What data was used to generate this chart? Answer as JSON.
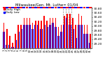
{
  "title": "Milwaukee/Gen. Mt. Luthe= 01/04",
  "background_color": "#ffffff",
  "bar_high_color": "#ff0000",
  "bar_low_color": "#0000ff",
  "dashed_line_color": "#888888",
  "ylim": [
    29.0,
    30.85
  ],
  "yticks": [
    29.2,
    29.4,
    29.6,
    29.8,
    30.0,
    30.2,
    30.4,
    30.6,
    30.8
  ],
  "categories": [
    "1",
    "2",
    "3",
    "4",
    "5",
    "6",
    "7",
    "8",
    "9",
    "10",
    "11",
    "12",
    "13",
    "14",
    "15",
    "16",
    "17",
    "18",
    "19",
    "20",
    "21",
    "22",
    "23",
    "24",
    "25",
    "26",
    "27",
    "28",
    "29",
    "30",
    "31"
  ],
  "high_values": [
    30.15,
    29.85,
    29.55,
    29.25,
    29.65,
    30.05,
    30.05,
    30.35,
    30.35,
    30.35,
    30.15,
    30.25,
    30.25,
    30.25,
    30.45,
    30.25,
    30.35,
    30.35,
    30.35,
    29.95,
    30.05,
    30.45,
    30.55,
    30.55,
    30.35,
    30.05,
    30.55,
    30.45,
    30.05,
    30.05,
    29.65
  ],
  "low_values": [
    29.75,
    29.15,
    29.15,
    29.05,
    29.35,
    29.75,
    29.85,
    30.05,
    30.05,
    30.05,
    29.85,
    30.05,
    30.05,
    29.85,
    30.05,
    29.95,
    30.05,
    30.15,
    29.95,
    29.55,
    29.75,
    30.05,
    30.35,
    30.05,
    29.85,
    29.45,
    30.05,
    30.05,
    29.65,
    29.65,
    29.25
  ],
  "dashed_indices": [
    20,
    21,
    22,
    23
  ],
  "legend_high": "Daily High",
  "legend_low": "Daily Low",
  "ytick_fontsize": 3.2,
  "xtick_fontsize": 2.8,
  "title_fontsize": 3.8,
  "legend_fontsize": 3.0,
  "bar_width": 0.38
}
